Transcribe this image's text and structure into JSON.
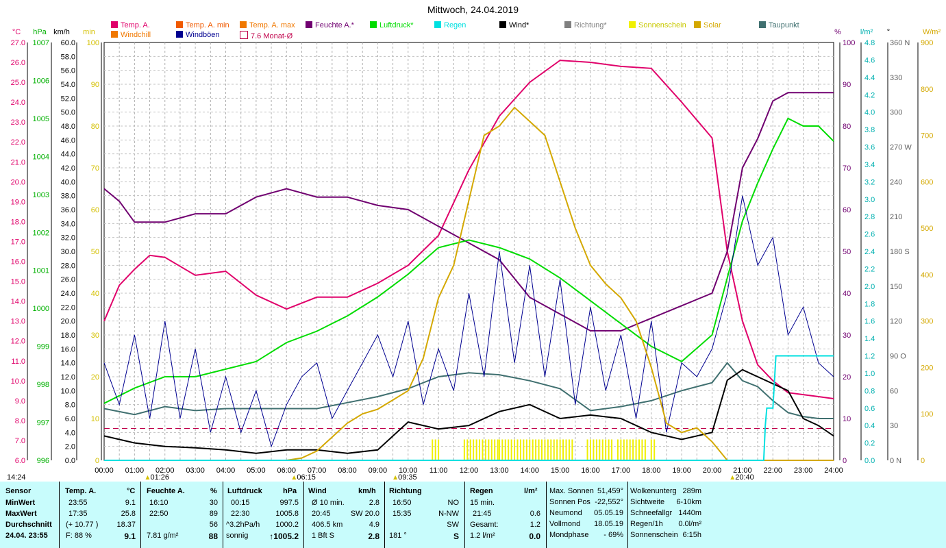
{
  "title": "Mittwoch, 24.04.2019",
  "legend": [
    {
      "label": "Temp. A.",
      "color": "#e0006a",
      "col": 162,
      "row": 0
    },
    {
      "label": "Windchill",
      "color": "#f07800",
      "col": 162,
      "row": 1
    },
    {
      "label": "Temp. A. min",
      "color": "#f05a00",
      "col": 257,
      "row": 0
    },
    {
      "label": "Windböen",
      "color": "#000090",
      "col": 257,
      "row": 1
    },
    {
      "label": "Temp. A. max",
      "color": "#f07800",
      "col": 350,
      "row": 0
    },
    {
      "label": "7.6 Monat-Ø",
      "color": "#ffffff",
      "border": "#c0004a",
      "col": 350,
      "row": 1
    },
    {
      "label": "Feuchte A.*",
      "color": "#700070",
      "col": 446,
      "row": 0
    },
    {
      "label": "Luftdruck*",
      "color": "#00dc00",
      "col": 540,
      "row": 0
    },
    {
      "label": "Regen",
      "color": "#00e0e0",
      "col": 634,
      "row": 0
    },
    {
      "label": "Wind*",
      "color": "#000000",
      "col": 729,
      "row": 0
    },
    {
      "label": "Richtung*",
      "color": "#808080",
      "col": 824,
      "row": 0
    },
    {
      "label": "Sonnenschein",
      "color": "#f0f000",
      "col": 918,
      "row": 0
    },
    {
      "label": "Solar",
      "color": "#d4a800",
      "col": 1013,
      "row": 0
    },
    {
      "label": "Taupunkt",
      "color": "#407070",
      "col": 1108,
      "row": 0
    }
  ],
  "axis_headers": [
    {
      "text": "°C",
      "color": "#e0006a",
      "x": 24
    },
    {
      "text": "hPa",
      "color": "#00b000",
      "x": 58
    },
    {
      "text": "km/h",
      "color": "#000000",
      "x": 90
    },
    {
      "text": "min",
      "color": "#d4c000",
      "x": 130
    },
    {
      "text": "%",
      "color": "#700070",
      "x": 1223
    },
    {
      "text": "l/m²",
      "color": "#00b0b0",
      "x": 1265
    },
    {
      "text": "°",
      "color": "#000000",
      "x": 1297
    },
    {
      "text": "W/m²",
      "color": "#d4a800",
      "x": 1360
    }
  ],
  "time_markers": [
    {
      "label": "01:26",
      "hour": 1.43
    },
    {
      "label": "06:15",
      "hour": 6.25
    },
    {
      "label": "09:35",
      "hour": 9.58
    },
    {
      "label": "20:40",
      "hour": 20.67
    }
  ],
  "left_time": "14:24",
  "chart_data": {
    "type": "line",
    "title": "Mittwoch, 24.04.2019",
    "x_ticks": [
      "00:00",
      "01:00",
      "02:00",
      "03:00",
      "04:00",
      "05:00",
      "06:00",
      "07:00",
      "08:00",
      "09:00",
      "10:00",
      "11:00",
      "12:00",
      "13:00",
      "14:00",
      "15:00",
      "16:00",
      "17:00",
      "18:00",
      "19:00",
      "20:00",
      "21:00",
      "22:00",
      "23:00",
      "24:00"
    ],
    "x_range_hours": [
      0,
      24
    ],
    "axes": {
      "temp_c": {
        "range": [
          6.0,
          27.0
        ],
        "ticks": [
          "6.0",
          "7.0",
          "8.0",
          "9.0",
          "10.0",
          "11.0",
          "12.0",
          "13.0",
          "14.0",
          "15.0",
          "16.0",
          "17.0",
          "18.0",
          "19.0",
          "20.0",
          "21.0",
          "22.0",
          "23.0",
          "24.0",
          "25.0",
          "26.0",
          "27.0"
        ]
      },
      "pressure_hpa": {
        "range": [
          996,
          1007
        ],
        "ticks": [
          "996",
          "997",
          "998",
          "999",
          "1000",
          "1001",
          "1002",
          "1003",
          "1004",
          "1005",
          "1006",
          "1007"
        ]
      },
      "wind_kmh": {
        "range": [
          0,
          60
        ],
        "ticks": [
          "0.0",
          "2.0",
          "4.0",
          "6.0",
          "8.0",
          "10.0",
          "12.0",
          "14.0",
          "16.0",
          "18.0",
          "20.0",
          "22.0",
          "24.0",
          "26.0",
          "28.0",
          "30.0",
          "32.0",
          "34.0",
          "36.0",
          "38.0",
          "40.0",
          "42.0",
          "44.0",
          "46.0",
          "48.0",
          "50.0",
          "52.0",
          "54.0",
          "56.0",
          "58.0",
          "60.0"
        ]
      },
      "sunshine_min": {
        "range": [
          0,
          100
        ],
        "ticks": [
          "0",
          "10",
          "20",
          "30",
          "40",
          "50",
          "60",
          "70",
          "80",
          "90",
          "100"
        ]
      },
      "humidity_pct": {
        "range": [
          0,
          100
        ],
        "ticks": [
          "0",
          "10",
          "20",
          "30",
          "40",
          "50",
          "60",
          "70",
          "80",
          "90",
          "100"
        ]
      },
      "rain_lm2": {
        "range": [
          0,
          4.8
        ],
        "ticks": [
          "0.0",
          "0.2",
          "0.4",
          "0.6",
          "0.8",
          "1.0",
          "1.2",
          "1.4",
          "1.6",
          "1.8",
          "2.0",
          "2.2",
          "2.4",
          "2.6",
          "2.8",
          "3.0",
          "3.2",
          "3.4",
          "3.6",
          "3.8",
          "4.0",
          "4.2",
          "4.4",
          "4.6",
          "4.8"
        ]
      },
      "direction_deg": {
        "range": [
          0,
          360
        ],
        "ticks": [
          "0",
          "30",
          "60",
          "90",
          "120",
          "150",
          "180",
          "210",
          "240",
          "270",
          "300",
          "330",
          "360"
        ],
        "compass": [
          "N",
          "",
          "",
          "O",
          "",
          "",
          "S",
          "",
          "",
          "W",
          "",
          "",
          "N"
        ]
      },
      "solar_wm2": {
        "range": [
          0,
          900
        ],
        "ticks": [
          "0",
          "100",
          "200",
          "300",
          "400",
          "500",
          "600",
          "700",
          "800",
          "900"
        ]
      }
    },
    "series": [
      {
        "name": "Temp. A.",
        "color": "#e0006a",
        "axis": "temp_c",
        "x": [
          0,
          0.5,
          1,
          1.5,
          2,
          3,
          4,
          5,
          6,
          7,
          8,
          9,
          10,
          11,
          12,
          13,
          14,
          15,
          16,
          17,
          18,
          19,
          20,
          20.5,
          21,
          21.5,
          22,
          22.5,
          23,
          23.5,
          24
        ],
        "y": [
          13.0,
          14.8,
          15.6,
          16.3,
          16.2,
          15.3,
          15.5,
          14.3,
          13.6,
          14.2,
          14.2,
          14.9,
          15.8,
          17.3,
          20.6,
          23.3,
          25.0,
          26.1,
          26.0,
          25.8,
          25.7,
          24.0,
          22.2,
          16.5,
          13.0,
          10.8,
          10.0,
          9.4,
          9.3,
          9.2,
          9.1
        ]
      },
      {
        "name": "Feuchte A.*",
        "color": "#700070",
        "axis": "humidity_pct",
        "x": [
          0,
          0.5,
          1,
          1.5,
          2,
          3,
          4,
          5,
          6,
          7,
          8,
          9,
          10,
          11,
          12,
          13,
          14,
          15,
          16,
          17,
          18,
          19,
          20,
          20.5,
          21,
          21.5,
          22,
          22.5,
          23,
          23.5,
          24
        ],
        "y": [
          65,
          62,
          57,
          57,
          57,
          59,
          59,
          63,
          65,
          63,
          63,
          61,
          60,
          56,
          52,
          48,
          39,
          35,
          31,
          31,
          34,
          37,
          40,
          50,
          70,
          77,
          86,
          88,
          88,
          88,
          88
        ]
      },
      {
        "name": "Luftdruck*",
        "color": "#00dc00",
        "axis": "pressure_hpa",
        "x": [
          0,
          1,
          2,
          3,
          4,
          5,
          6,
          7,
          8,
          9,
          10,
          11,
          12,
          13,
          14,
          15,
          16,
          17,
          18,
          19,
          20,
          20.5,
          21,
          21.5,
          22,
          22.5,
          23,
          23.5,
          24
        ],
        "y": [
          997.5,
          997.9,
          998.2,
          998.2,
          998.4,
          998.6,
          999.1,
          999.4,
          999.8,
          1000.3,
          1000.9,
          1001.6,
          1001.8,
          1001.6,
          1001.3,
          1000.8,
          1000.2,
          999.6,
          999.0,
          998.6,
          999.3,
          1000.8,
          1002.3,
          1003.3,
          1004.2,
          1005.0,
          1004.8,
          1004.8,
          1004.4
        ]
      },
      {
        "name": "Taupunkt",
        "color": "#407070",
        "axis": "temp_c",
        "x": [
          0,
          1,
          2,
          3,
          4,
          5,
          6,
          7,
          8,
          9,
          10,
          11,
          12,
          13,
          14,
          15,
          16,
          17,
          18,
          19,
          20,
          20.5,
          21,
          21.5,
          22,
          22.5,
          23,
          23.5,
          24
        ],
        "y": [
          8.6,
          8.3,
          8.7,
          8.5,
          8.6,
          8.6,
          8.6,
          8.6,
          8.9,
          9.2,
          9.6,
          10.2,
          10.4,
          10.3,
          10.0,
          9.6,
          8.5,
          8.7,
          9.0,
          9.5,
          9.9,
          10.9,
          10.0,
          9.7,
          9.0,
          8.4,
          8.2,
          8.1,
          8.1
        ]
      },
      {
        "name": "Wind*",
        "color": "#000000",
        "axis": "wind_kmh",
        "x": [
          0,
          1,
          2,
          3,
          4,
          5,
          6,
          7,
          8,
          9,
          10,
          11,
          12,
          13,
          14,
          15,
          16,
          17,
          18,
          19,
          20,
          20.5,
          21,
          21.5,
          22,
          22.5,
          23,
          23.5,
          24
        ],
        "y": [
          3.5,
          2.5,
          2.0,
          1.8,
          1.5,
          1.0,
          1.5,
          1.5,
          1.0,
          1.5,
          5.5,
          4.5,
          5.0,
          7.0,
          8.0,
          6.0,
          6.5,
          6.0,
          4.0,
          3.0,
          4.0,
          11.5,
          13.0,
          12.0,
          11.0,
          10.0,
          6.0,
          5.0,
          3.5
        ]
      },
      {
        "name": "Windböen",
        "color": "#000090",
        "axis": "wind_kmh",
        "x": [
          0,
          0.5,
          1,
          1.5,
          2,
          2.5,
          3,
          3.5,
          4,
          4.5,
          5,
          5.5,
          6,
          6.5,
          7,
          7.5,
          8,
          8.5,
          9,
          9.5,
          10,
          10.5,
          11,
          11.5,
          12,
          12.5,
          13,
          13.5,
          14,
          14.5,
          15,
          15.5,
          16,
          16.5,
          17,
          17.5,
          18,
          18.5,
          19,
          19.5,
          20,
          20.5,
          21,
          21.5,
          22,
          22.5,
          23,
          23.5,
          24
        ],
        "y": [
          14,
          8,
          18,
          6,
          20,
          6,
          16,
          4,
          12,
          4,
          10,
          2,
          8,
          12,
          14,
          6,
          10,
          14,
          18,
          12,
          20,
          8,
          16,
          10,
          24,
          12,
          30,
          14,
          28,
          12,
          26,
          8,
          22,
          10,
          18,
          6,
          20,
          4,
          14,
          12,
          16,
          24,
          38,
          28,
          32,
          18,
          22,
          14,
          12
        ]
      },
      {
        "name": "Solar",
        "color": "#d4a800",
        "axis": "solar_wm2",
        "x": [
          0,
          6,
          6.5,
          7,
          7.5,
          8,
          8.5,
          9,
          9.5,
          10,
          10.5,
          11,
          11.5,
          12,
          12.5,
          13,
          13.5,
          14,
          14.5,
          15,
          15.5,
          16,
          16.5,
          17,
          17.5,
          18,
          18.5,
          19,
          19.5,
          20,
          20.5,
          21,
          24
        ],
        "y": [
          0,
          0,
          5,
          20,
          50,
          80,
          100,
          110,
          130,
          150,
          220,
          350,
          420,
          560,
          700,
          720,
          760,
          730,
          700,
          600,
          500,
          420,
          380,
          350,
          300,
          200,
          80,
          60,
          70,
          40,
          0,
          0,
          0
        ]
      },
      {
        "name": "Regen",
        "color": "#00e0e0",
        "axis": "rain_lm2",
        "x": [
          0,
          21.7,
          21.75,
          21.8,
          22,
          22.1,
          24
        ],
        "y": [
          0,
          0,
          0.4,
          0.6,
          0.6,
          1.2,
          1.2
        ]
      }
    ],
    "monthly_avg_temp_c": 7.6,
    "sunshine_bars_hours": [
      [
        10.8,
        11.0
      ],
      [
        11.85,
        13.0
      ],
      [
        13.0,
        15.4
      ],
      [
        15.9,
        16.8
      ],
      [
        16.9,
        17.9
      ],
      [
        18.0,
        18.1
      ]
    ]
  },
  "table": {
    "headers": {
      "sensor": "Sensor",
      "temp": "Temp. A.",
      "temp_unit": "°C",
      "hum": "Feuchte A.",
      "hum_unit": "%",
      "press": "Luftdruck",
      "press_unit": "hPa",
      "wind": "Wind",
      "wind_unit": "km/h",
      "dir": "Richtung",
      "rain": "Regen",
      "rain_unit": "l/m²"
    },
    "rows": {
      "min": "MinWert",
      "max": "MaxWert",
      "avg": "Durchschnitt",
      "now": "24.04. 23:55"
    },
    "temp": {
      "min_t": "23:55",
      "min_v": "9.1",
      "max_t": "17:35",
      "max_v": "25.8",
      "avg_t": "(+ 10.77 )",
      "avg_v": "18.37",
      "now_t": "F: 88 %",
      "now_v": "9.1"
    },
    "hum": {
      "min_t": "16:10",
      "min_v": "30",
      "max_t": "22:50",
      "max_v": "89",
      "avg_v": "56",
      "now_t": "7.81 g/m²",
      "now_v": "88"
    },
    "press": {
      "min_t": "00:15",
      "min_v": "997.5",
      "max_t": "22:30",
      "max_v": "1005.8",
      "avg_t": "^3.2hPa/h",
      "avg_v": "1000.2",
      "now_t": "sonnig",
      "now_v": "↑1005.2"
    },
    "wind": {
      "r1_t": "Ø 10 min.",
      "r1_v": "2.8",
      "r2_t": "20:45",
      "r2_v": "SW 20.0",
      "r3_t": "406.5 km",
      "r3_v": "4.9",
      "r4_t": "1 Bft S",
      "r4_v": "2.8"
    },
    "dir": {
      "r1_t": "16:50",
      "r1_v": "NO",
      "r2_t": "15:35",
      "r2_v": "N-NW",
      "r3_v": "SW",
      "r4_t": "181 °",
      "r4_v": "S"
    },
    "rain": {
      "r1_t": "15 min.",
      "r2_t": "21:45",
      "r2_v": "0.6",
      "r3_t": "Gesamt:",
      "r3_v": "1.2",
      "r4_t": "1.2 l/m²",
      "r4_v": "0.0"
    },
    "astro": [
      {
        "k": "Max. Sonnen",
        "v": "51,459°"
      },
      {
        "k": "Sonnen Pos",
        "v": "-22,552°"
      },
      {
        "k": "Neumond",
        "v": "05.05.19"
      },
      {
        "k": "Vollmond",
        "v": "18.05.19"
      },
      {
        "k": "Mondphase",
        "v": "- 69%"
      }
    ],
    "misc": [
      {
        "k": "Wolkenunterg",
        "v": "289m"
      },
      {
        "k": "Sichtweite",
        "v": "6-10km"
      },
      {
        "k": "Schneefallgr",
        "v": "1440m"
      },
      {
        "k": "Regen/1h",
        "v": "0.0l/m²"
      },
      {
        "k": "Sonnenschein",
        "v": "6:15h"
      }
    ]
  }
}
